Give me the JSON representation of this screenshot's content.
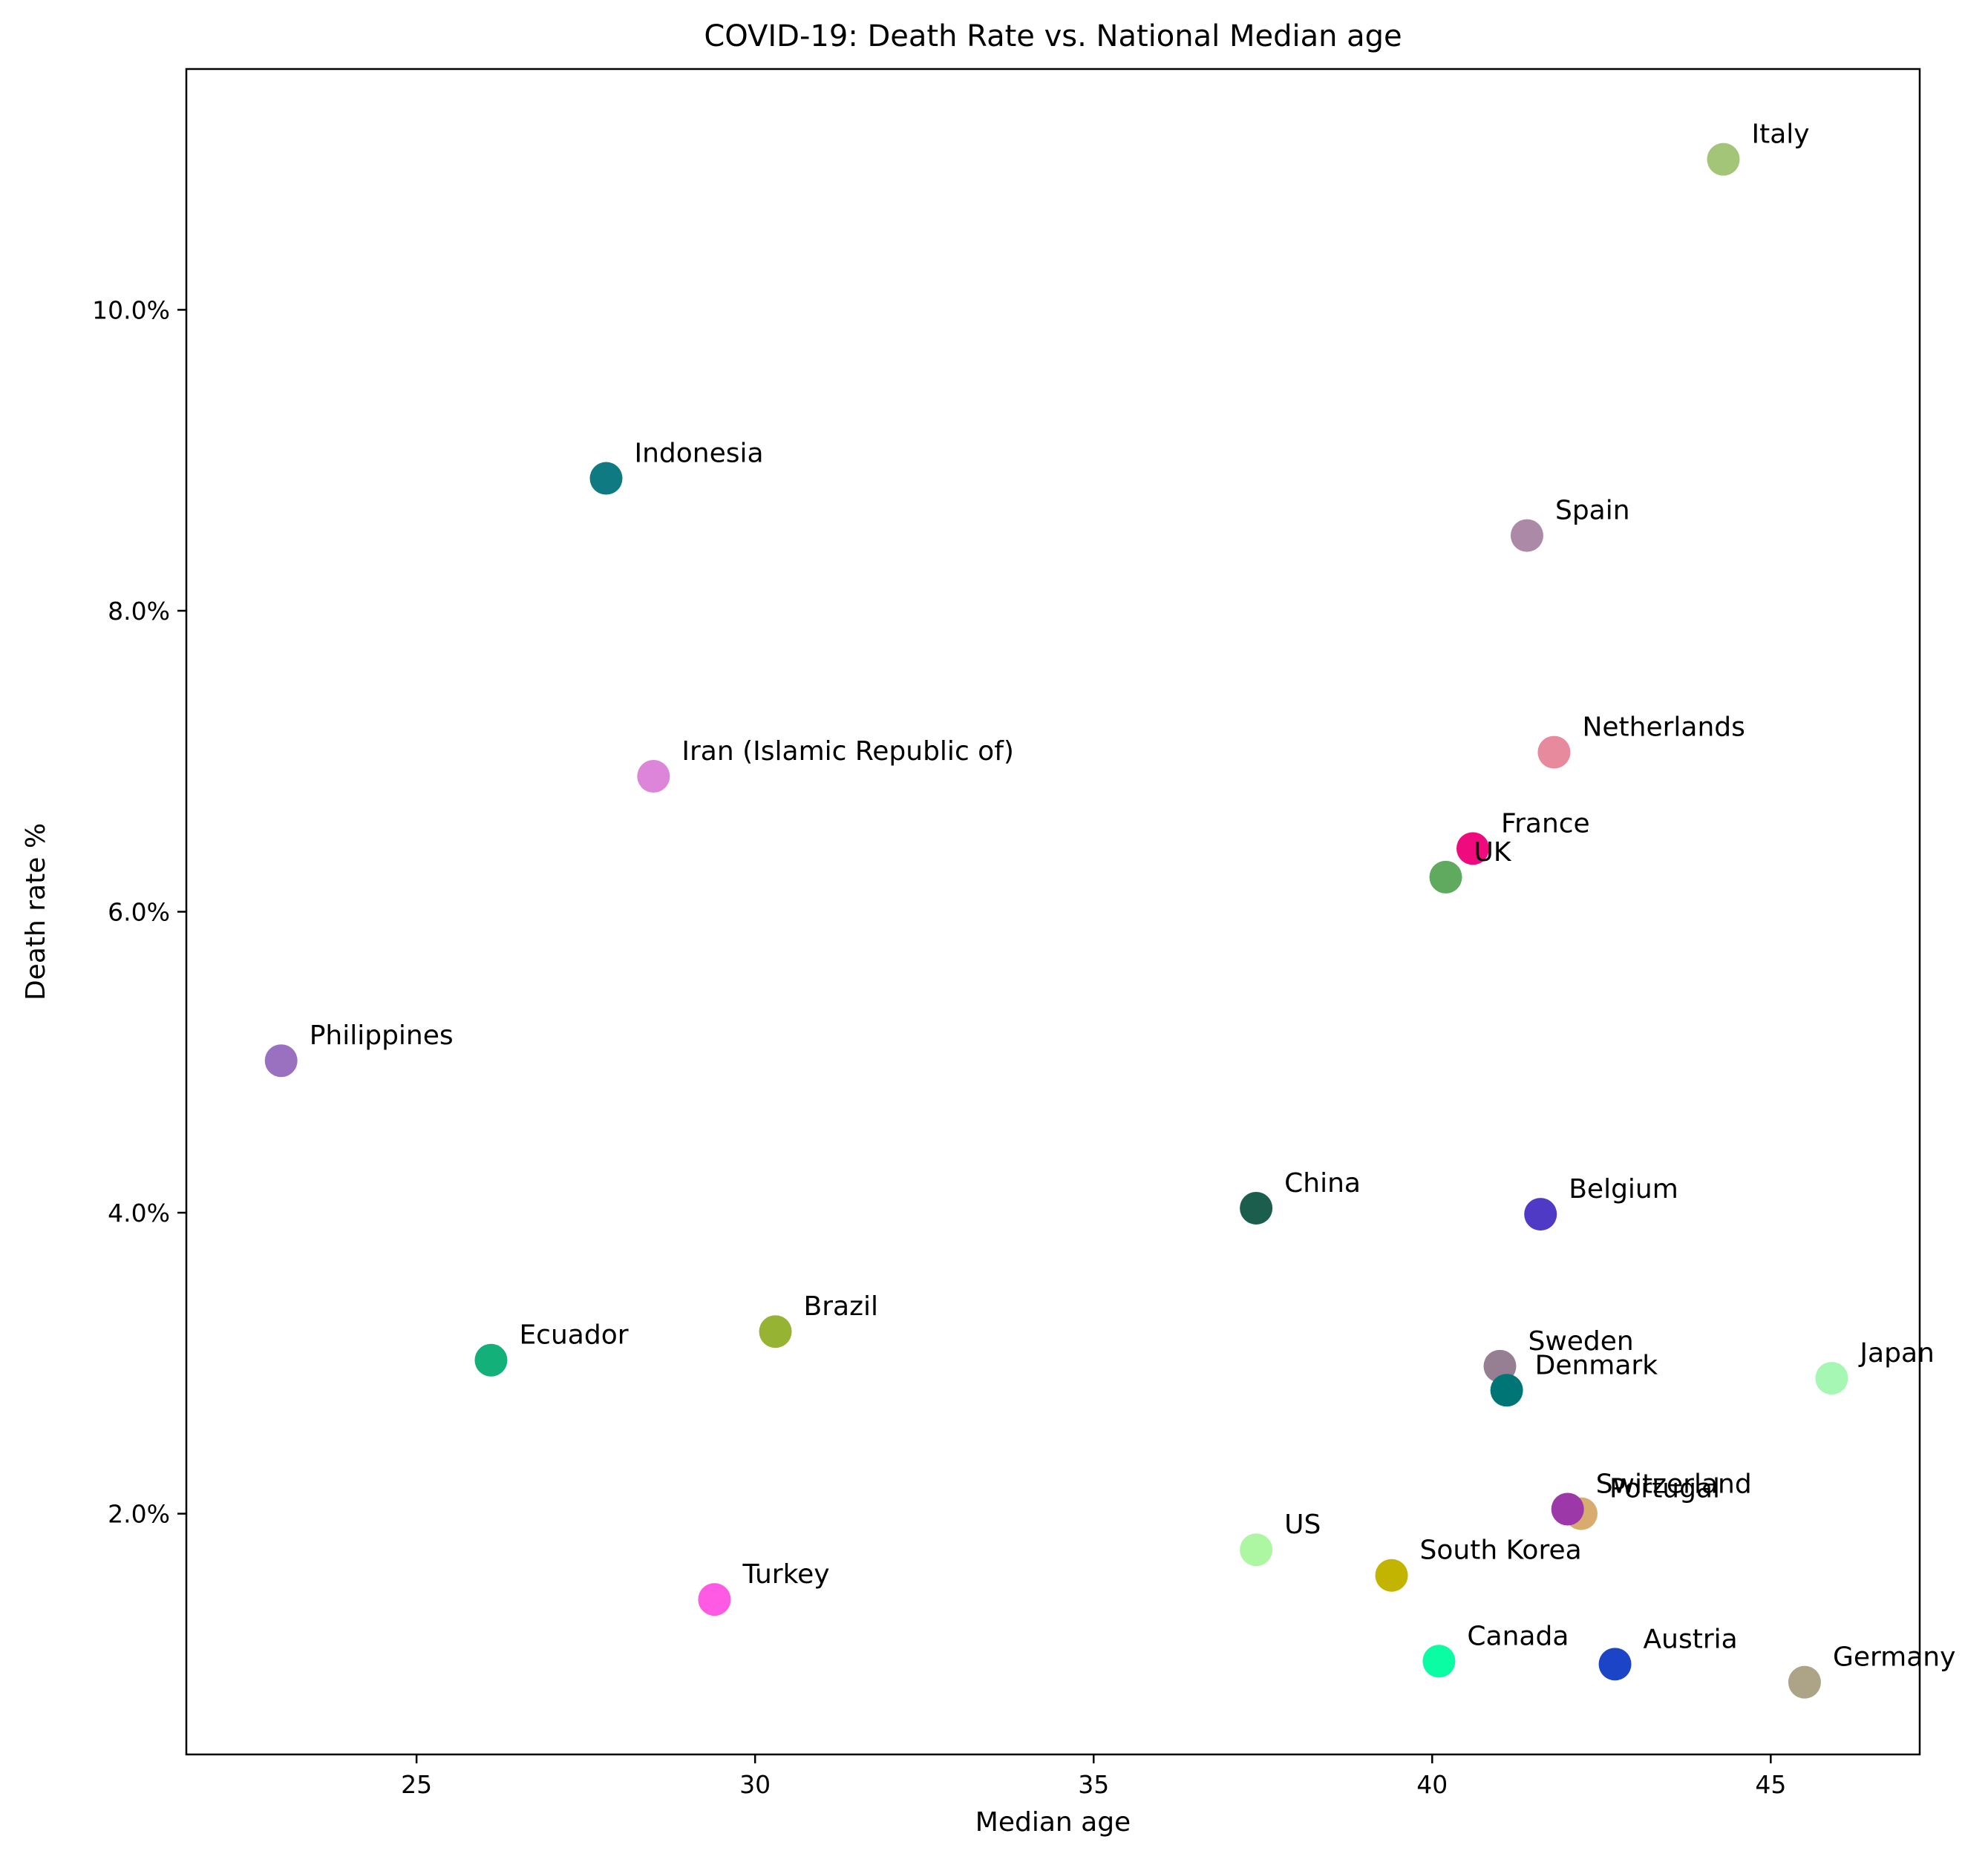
{
  "chart_data": {
    "type": "scatter",
    "title": "COVID-19: Death Rate vs. National Median age",
    "xlabel": "Median age",
    "ylabel": "Death rate %",
    "xlim": [
      21.6,
      47.2
    ],
    "ylim": [
      0.4,
      11.6
    ],
    "xticks": [
      25,
      30,
      35,
      40,
      45
    ],
    "xtick_labels": [
      "25",
      "30",
      "35",
      "40",
      "45"
    ],
    "yticks": [
      2,
      4,
      6,
      8,
      10
    ],
    "ytick_labels": [
      "2.0%",
      "4.0%",
      "6.0%",
      "8.0%",
      "10.0%"
    ],
    "grid": false,
    "legend": "none",
    "points": [
      {
        "label": "Italy",
        "x": 44.3,
        "y": 11.0,
        "color": "#a3c578"
      },
      {
        "label": "Indonesia",
        "x": 27.8,
        "y": 8.88,
        "color": "#0f7a82"
      },
      {
        "label": "Spain",
        "x": 41.4,
        "y": 8.5,
        "color": "#ad89a8"
      },
      {
        "label": "Netherlands",
        "x": 41.8,
        "y": 7.06,
        "color": "#e88a9e"
      },
      {
        "label": "Iran (Islamic Republic of)",
        "x": 28.5,
        "y": 6.9,
        "color": "#dd85d8"
      },
      {
        "label": "France",
        "x": 40.6,
        "y": 6.42,
        "color": "#ef0a7d"
      },
      {
        "label": "UK",
        "x": 40.2,
        "y": 6.23,
        "color": "#5faa5f"
      },
      {
        "label": "Philippines",
        "x": 23.0,
        "y": 5.01,
        "color": "#9a70c0"
      },
      {
        "label": "China",
        "x": 37.4,
        "y": 4.03,
        "color": "#1b5e4e"
      },
      {
        "label": "Belgium",
        "x": 41.6,
        "y": 3.99,
        "color": "#4f3ac6"
      },
      {
        "label": "Brazil",
        "x": 30.3,
        "y": 3.21,
        "color": "#97b334"
      },
      {
        "label": "Ecuador",
        "x": 26.1,
        "y": 3.02,
        "color": "#13b07a"
      },
      {
        "label": "Sweden",
        "x": 41.0,
        "y": 2.98,
        "color": "#967e93"
      },
      {
        "label": "Japan",
        "x": 45.9,
        "y": 2.9,
        "color": "#a6f7b3"
      },
      {
        "label": "Denmark",
        "x": 41.1,
        "y": 2.82,
        "color": "#007575"
      },
      {
        "label": "Portugal",
        "x": 42.2,
        "y": 2.0,
        "color": "#d7ac6e"
      },
      {
        "label": "Switzerland",
        "x": 42.0,
        "y": 2.03,
        "color": "#9c38a8"
      },
      {
        "label": "US",
        "x": 37.4,
        "y": 1.76,
        "color": "#adf7a3"
      },
      {
        "label": "South Korea",
        "x": 39.4,
        "y": 1.59,
        "color": "#c2b400"
      },
      {
        "label": "Turkey",
        "x": 29.4,
        "y": 1.43,
        "color": "#fe5ae4"
      },
      {
        "label": "Canada",
        "x": 40.1,
        "y": 1.02,
        "color": "#0afda2"
      },
      {
        "label": "Austria",
        "x": 42.7,
        "y": 1.0,
        "color": "#1c44c6"
      },
      {
        "label": "Germany",
        "x": 45.5,
        "y": 0.88,
        "color": "#ada387"
      }
    ]
  }
}
